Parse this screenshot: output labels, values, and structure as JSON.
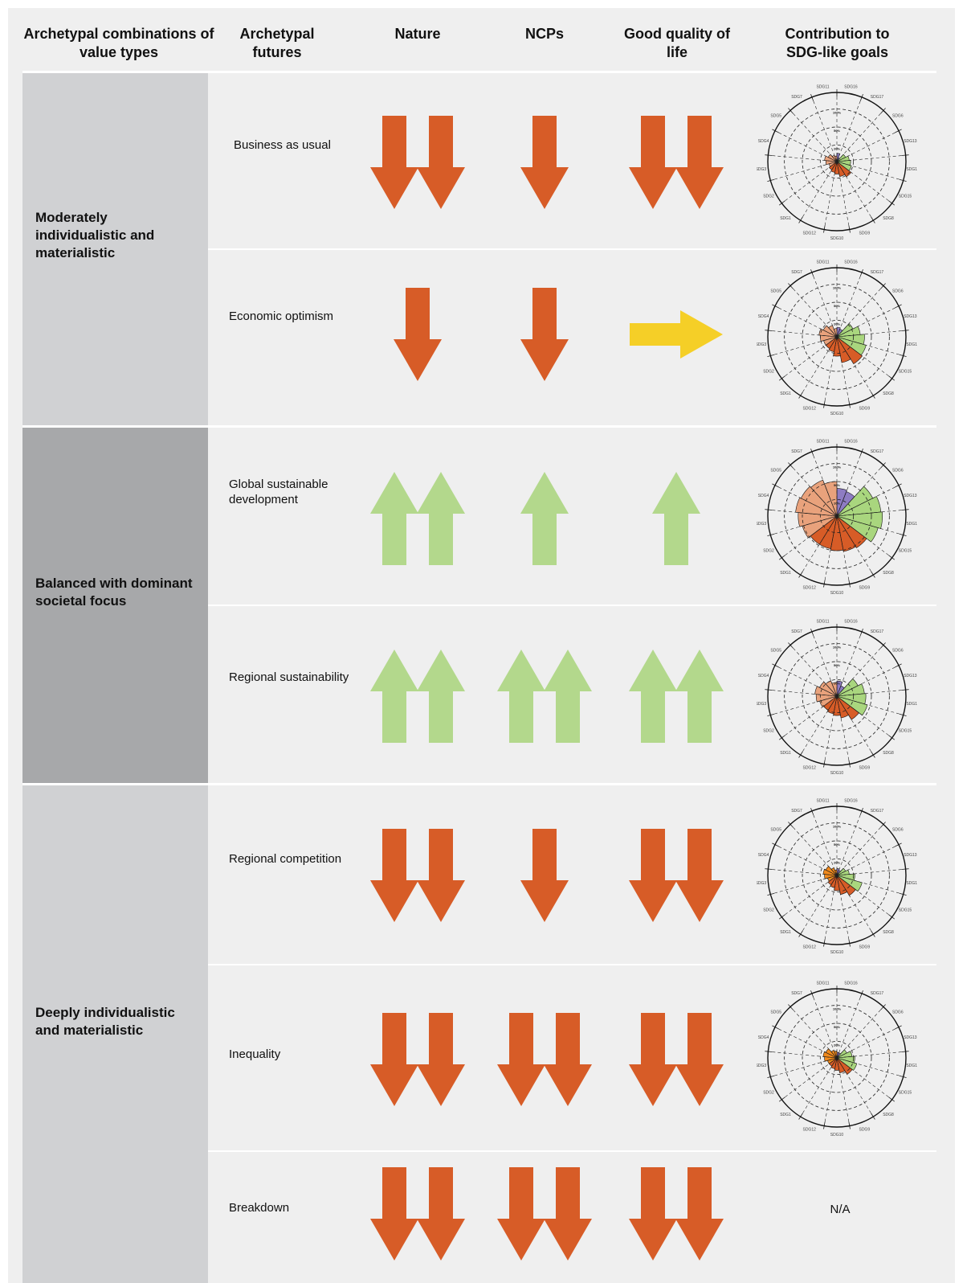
{
  "headers": {
    "combinations": "Archetypal combinations of value types",
    "futures": "Archetypal futures",
    "nature": "Nature",
    "ncps": "NCPs",
    "gqol": "Good quality of life",
    "sdg": "Contribution to SDG-like goals"
  },
  "colors": {
    "down": "#d75c27",
    "up": "#b3d88c",
    "neutral": "#f5cf27"
  },
  "radar_labels": {
    "sdgs": [
      "SDG16",
      "SDG17",
      "SDG6",
      "SDG13",
      "SDG14",
      "SDG15",
      "SDG8",
      "SDG9",
      "SDG10",
      "SDG12",
      "SDG1",
      "SDG2",
      "SDG3",
      "SDG4",
      "SDG5",
      "SDG7",
      "SDG11"
    ],
    "rings": [
      "100%",
      "50%",
      "20%"
    ]
  },
  "groups": [
    {
      "label": "Moderately individualistic and materialistic"
    },
    {
      "label": "Balanced with dominant societal focus"
    },
    {
      "label": "Deeply individualistic and materialistic"
    }
  ],
  "rows": [
    {
      "name": "Business as usual",
      "nature": "double-down",
      "ncps": "down",
      "gqol": "double-down",
      "sdg": {
        "values": [
          12,
          6,
          14,
          18,
          20,
          22,
          26,
          22,
          18,
          16,
          14,
          12,
          16,
          18,
          14,
          10,
          8
        ]
      }
    },
    {
      "name": "Economic optimism",
      "nature": "down",
      "ncps": "down",
      "gqol": "right",
      "sdg": {
        "values": [
          14,
          12,
          26,
          34,
          40,
          44,
          46,
          38,
          28,
          22,
          20,
          20,
          24,
          26,
          22,
          18,
          12
        ]
      }
    },
    {
      "name": "Global sustainable development",
      "nature": "double-up",
      "ncps": "up",
      "gqol": "up",
      "sdg": {
        "values": [
          40,
          38,
          58,
          64,
          66,
          62,
          54,
          52,
          50,
          48,
          48,
          52,
          56,
          60,
          58,
          56,
          50
        ]
      }
    },
    {
      "name": "Regional sustainability",
      "nature": "double-up",
      "ncps": "double-up",
      "gqol": "double-up",
      "sdg": {
        "values": [
          22,
          16,
          34,
          40,
          42,
          46,
          40,
          32,
          28,
          26,
          24,
          26,
          30,
          32,
          28,
          24,
          20
        ]
      }
    },
    {
      "name": "Regional competition",
      "nature": "double-down",
      "ncps": "down",
      "gqol": "double-down",
      "sdg": {
        "values": [
          10,
          8,
          14,
          18,
          26,
          38,
          34,
          28,
          22,
          18,
          16,
          14,
          18,
          20,
          18,
          12,
          8
        ]
      }
    },
    {
      "name": "Inequality",
      "nature": "double-down",
      "ncps": "double-down",
      "gqol": "double-down",
      "sdg": {
        "values": [
          8,
          8,
          16,
          22,
          26,
          30,
          28,
          22,
          18,
          16,
          14,
          14,
          18,
          20,
          18,
          12,
          10
        ]
      }
    },
    {
      "name": "Breakdown",
      "nature": "double-down",
      "ncps": "double-down",
      "gqol": "double-down",
      "sdg_na": "N/A"
    }
  ]
}
